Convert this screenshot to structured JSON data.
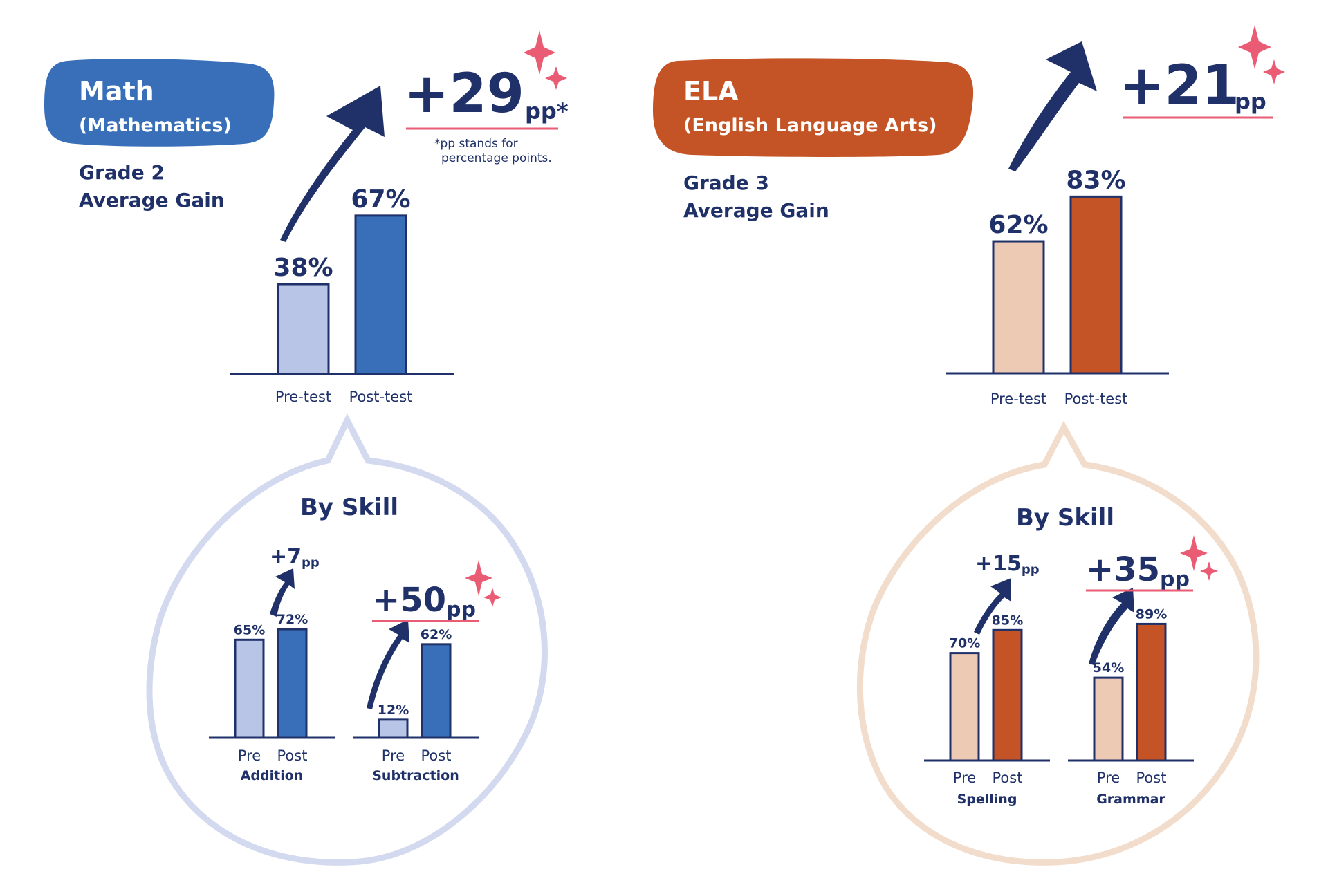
{
  "colors": {
    "navy": "#1f3168",
    "math_blue": "#386fb8",
    "math_light": "#b8c5e6",
    "math_ring": "#d3daf0",
    "ela_orange": "#c45426",
    "ela_light": "#eccab3",
    "ela_ring": "#f2dccb",
    "accent_pink": "#ea5c74"
  },
  "math": {
    "label_line1": "Math",
    "label_line2": "(Mathematics)",
    "grade": "Grade 2",
    "subtitle": "Average Gain",
    "gain": "+29",
    "gain_unit": "pp*",
    "footnote_line1": "*pp stands for",
    "footnote_line2": "percentage points.",
    "skill_heading": "By Skill"
  },
  "ela": {
    "label_line1": "ELA",
    "label_line2": "(English Language Arts)",
    "grade": "Grade 3",
    "subtitle": "Average Gain",
    "gain": "+21",
    "gain_unit": "pp",
    "skill_heading": "By Skill"
  },
  "chart_data": [
    {
      "type": "bar",
      "id": "math-main",
      "categories": [
        "Pre-test",
        "Post-test"
      ],
      "values": [
        38,
        67
      ],
      "value_labels": [
        "38%",
        "67%"
      ],
      "gain_label": "+29 pp",
      "ylim": [
        0,
        100
      ]
    },
    {
      "type": "bar",
      "id": "math-addition",
      "xlabel": "Addition",
      "categories": [
        "Pre",
        "Post"
      ],
      "values": [
        65,
        72
      ],
      "value_labels": [
        "65%",
        "72%"
      ],
      "gain_label": "+7 pp",
      "ylim": [
        0,
        100
      ]
    },
    {
      "type": "bar",
      "id": "math-subtraction",
      "xlabel": "Subtraction",
      "categories": [
        "Pre",
        "Post"
      ],
      "values": [
        12,
        62
      ],
      "value_labels": [
        "12%",
        "62%"
      ],
      "gain_label": "+50 pp",
      "ylim": [
        0,
        100
      ]
    },
    {
      "type": "bar",
      "id": "ela-main",
      "categories": [
        "Pre-test",
        "Post-test"
      ],
      "values": [
        62,
        83
      ],
      "value_labels": [
        "62%",
        "83%"
      ],
      "gain_label": "+21 pp",
      "ylim": [
        0,
        100
      ]
    },
    {
      "type": "bar",
      "id": "ela-spelling",
      "xlabel": "Spelling",
      "categories": [
        "Pre",
        "Post"
      ],
      "values": [
        70,
        85
      ],
      "value_labels": [
        "70%",
        "85%"
      ],
      "gain_label": "+15 pp",
      "ylim": [
        0,
        100
      ]
    },
    {
      "type": "bar",
      "id": "ela-grammar",
      "xlabel": "Grammar",
      "categories": [
        "Pre",
        "Post"
      ],
      "values": [
        54,
        89
      ],
      "value_labels": [
        "54%",
        "89%"
      ],
      "gain_label": "+35 pp",
      "ylim": [
        0,
        100
      ]
    }
  ]
}
